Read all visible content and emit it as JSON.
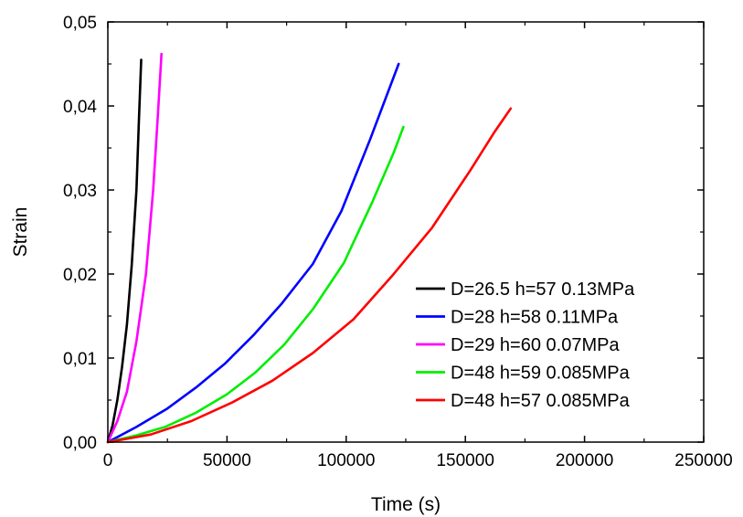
{
  "chart_data": {
    "type": "line",
    "title": "",
    "xlabel": "Time (s)",
    "ylabel": "Strain",
    "xlim": [
      0,
      250000
    ],
    "ylim": [
      0,
      0.05
    ],
    "x_ticks": [
      0,
      50000,
      100000,
      150000,
      200000,
      250000
    ],
    "x_tick_labels": [
      "0",
      "50000",
      "100000",
      "150000",
      "200000",
      "250000"
    ],
    "y_ticks": [
      0,
      0.01,
      0.02,
      0.03,
      0.04,
      0.05
    ],
    "y_tick_labels": [
      "0,00",
      "0,01",
      "0,02",
      "0,03",
      "0,04",
      "0,05"
    ],
    "grid": false,
    "legend_position": "bottom-right",
    "series": [
      {
        "name": "D=26.5 h=57 0.13MPa",
        "color": "#000000",
        "points": [
          [
            0,
            0
          ],
          [
            2000,
            0.002
          ],
          [
            4000,
            0.005
          ],
          [
            6000,
            0.009
          ],
          [
            8000,
            0.014
          ],
          [
            10000,
            0.021
          ],
          [
            12000,
            0.03
          ],
          [
            13000,
            0.038
          ],
          [
            14000,
            0.0455
          ]
        ]
      },
      {
        "name": "D=28 h=58 0.11MPa",
        "color": "#0000ff",
        "points": [
          [
            0,
            0
          ],
          [
            12000,
            0.0018
          ],
          [
            25000,
            0.004
          ],
          [
            37000,
            0.0065
          ],
          [
            49000,
            0.0093
          ],
          [
            61000,
            0.0127
          ],
          [
            73000,
            0.0165
          ],
          [
            86000,
            0.0212
          ],
          [
            98000,
            0.0275
          ],
          [
            110000,
            0.036
          ],
          [
            122000,
            0.045
          ]
        ]
      },
      {
        "name": "D=29 h=60 0.07MPa",
        "color": "#ff00ff",
        "points": [
          [
            0,
            0
          ],
          [
            4000,
            0.0025
          ],
          [
            8000,
            0.006
          ],
          [
            12000,
            0.012
          ],
          [
            16000,
            0.02
          ],
          [
            19000,
            0.03
          ],
          [
            21000,
            0.039
          ],
          [
            22500,
            0.0462
          ]
        ]
      },
      {
        "name": "D=48 h=59 0.085MPa",
        "color": "#00ee00",
        "points": [
          [
            0,
            0
          ],
          [
            12000,
            0.0008
          ],
          [
            24000,
            0.0018
          ],
          [
            37000,
            0.0035
          ],
          [
            50000,
            0.0057
          ],
          [
            62000,
            0.0083
          ],
          [
            74000,
            0.0116
          ],
          [
            86000,
            0.0158
          ],
          [
            99000,
            0.0213
          ],
          [
            111000,
            0.0286
          ],
          [
            120000,
            0.0345
          ],
          [
            124000,
            0.0375
          ]
        ]
      },
      {
        "name": "D=48 h=57 0.085MPa",
        "color": "#ff0000",
        "points": [
          [
            0,
            0
          ],
          [
            18000,
            0.0009
          ],
          [
            35000,
            0.0025
          ],
          [
            52000,
            0.0047
          ],
          [
            69000,
            0.0073
          ],
          [
            86000,
            0.0106
          ],
          [
            103000,
            0.0146
          ],
          [
            119000,
            0.0197
          ],
          [
            136000,
            0.0255
          ],
          [
            152000,
            0.0323
          ],
          [
            162000,
            0.0368
          ],
          [
            169000,
            0.0397
          ]
        ]
      }
    ]
  }
}
